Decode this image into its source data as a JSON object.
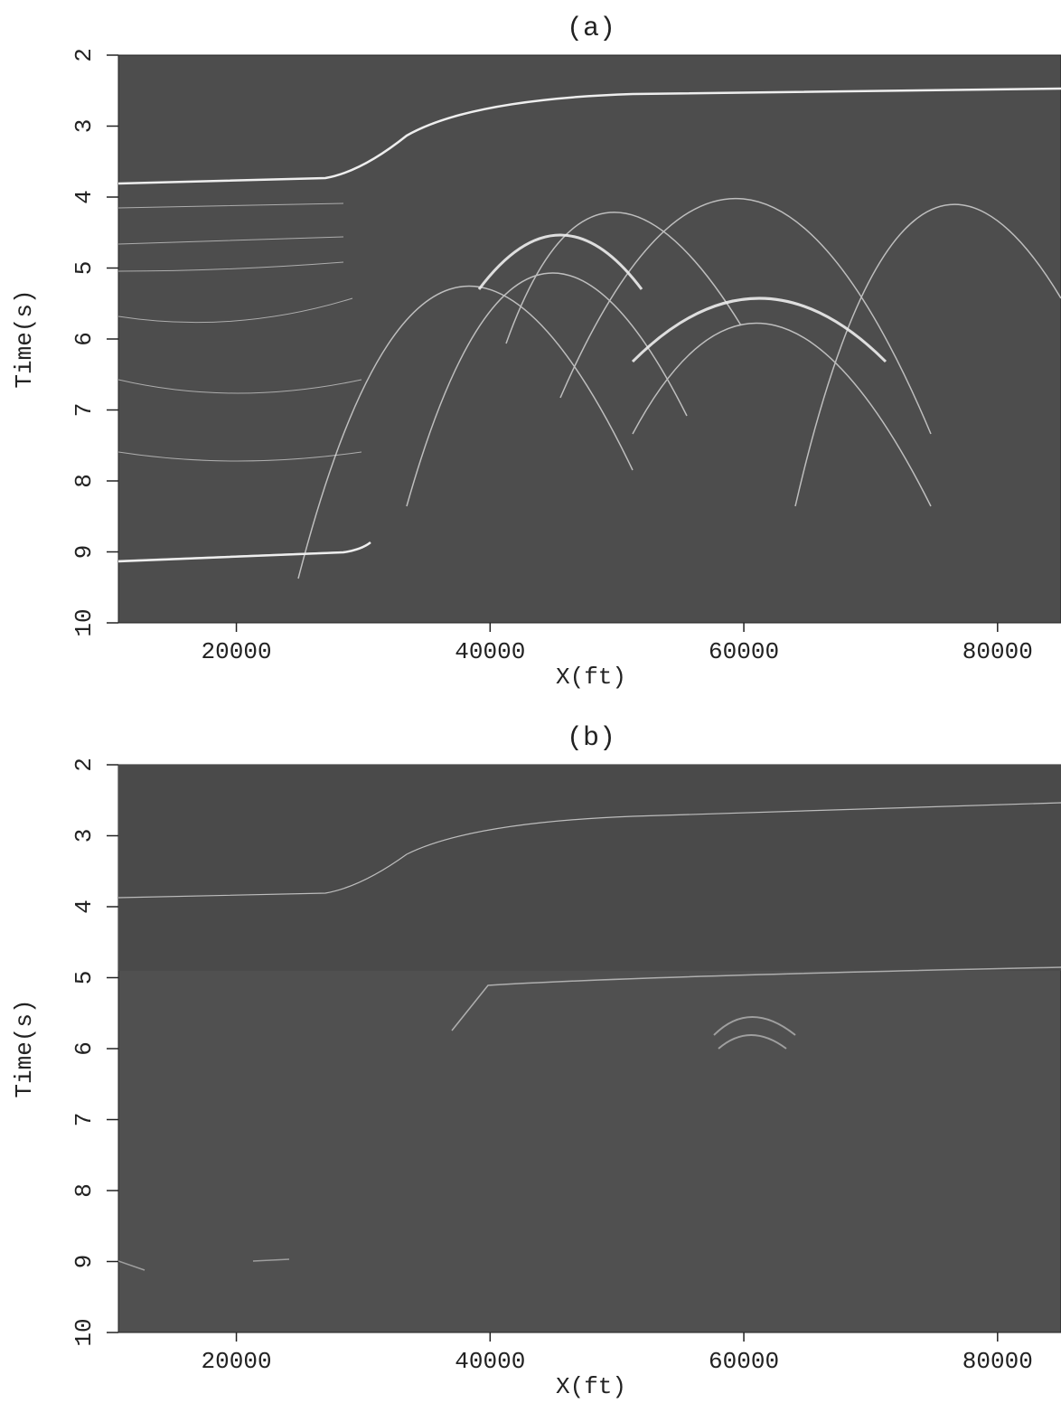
{
  "chart_data": [
    {
      "type": "image",
      "title": "(a)",
      "xlabel": "X(ft)",
      "ylabel": "Time(s)",
      "xlim": [
        10700,
        85000
      ],
      "xticks": [
        20000,
        40000,
        60000,
        80000
      ],
      "ylim": [
        10,
        2
      ],
      "yticks": [
        2,
        3,
        4,
        5,
        6,
        7,
        8,
        9,
        10
      ]
    },
    {
      "type": "image",
      "title": "(b)",
      "xlabel": "X(ft)",
      "ylabel": "Time(s)",
      "xlim": [
        10700,
        85000
      ],
      "xticks": [
        20000,
        40000,
        60000,
        80000
      ],
      "ylim": [
        10,
        2
      ],
      "yticks": [
        2,
        3,
        4,
        5,
        6,
        7,
        8,
        9,
        10
      ]
    }
  ]
}
